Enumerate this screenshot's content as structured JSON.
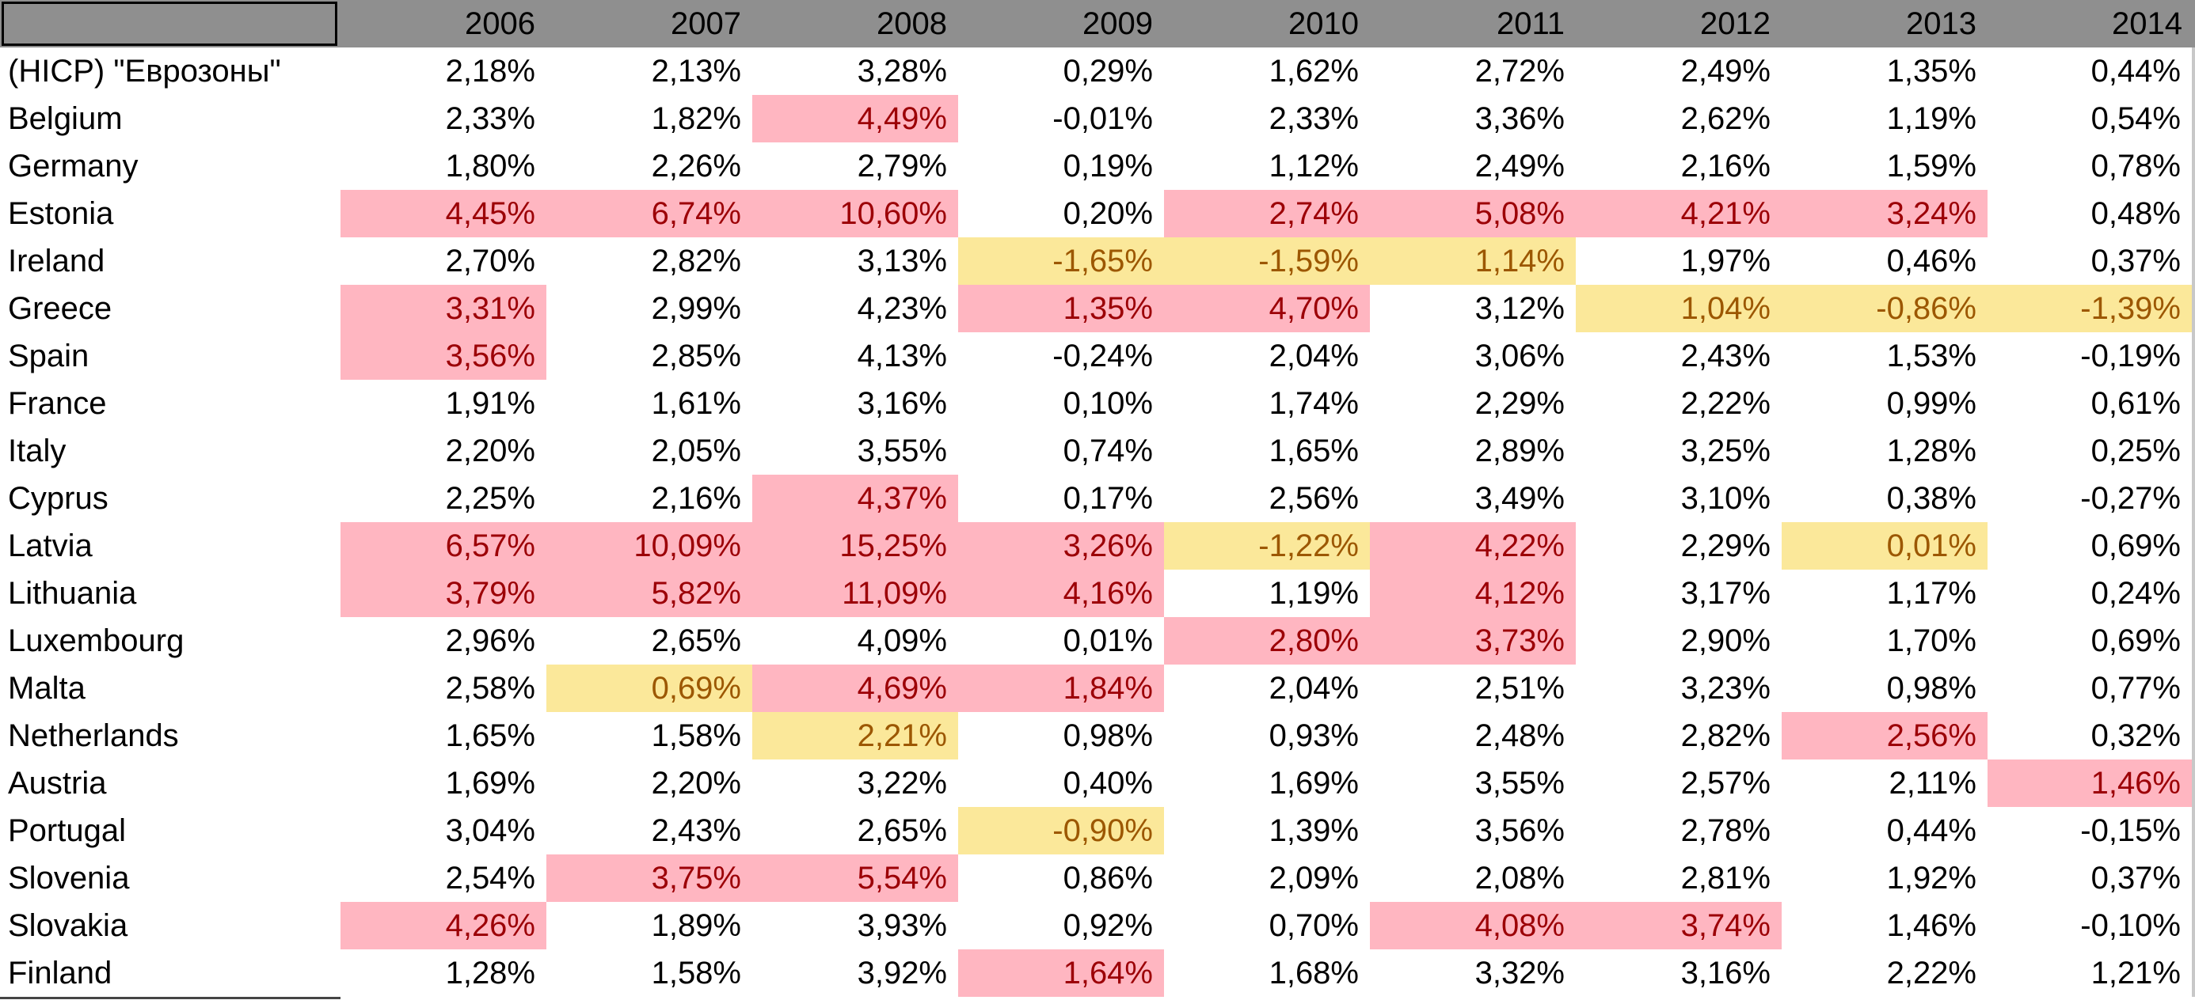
{
  "table": {
    "columns": [
      "",
      "2006",
      "2007",
      "2008",
      "2009",
      "2010",
      "2011",
      "2012",
      "2013",
      "2014"
    ],
    "rows": [
      {
        "name": "(HICP) \"Еврозоны\"",
        "values": [
          "2,18%",
          "2,13%",
          "3,28%",
          "0,29%",
          "1,62%",
          "2,72%",
          "2,49%",
          "1,35%",
          "0,44%"
        ],
        "flags": [
          "",
          "",
          "",
          "",
          "",
          "",
          "",
          "",
          ""
        ]
      },
      {
        "name": "Belgium",
        "values": [
          "2,33%",
          "1,82%",
          "4,49%",
          "-0,01%",
          "2,33%",
          "3,36%",
          "2,62%",
          "1,19%",
          "0,54%"
        ],
        "flags": [
          "",
          "",
          "high",
          "",
          "",
          "",
          "",
          "",
          ""
        ]
      },
      {
        "name": "Germany",
        "values": [
          "1,80%",
          "2,26%",
          "2,79%",
          "0,19%",
          "1,12%",
          "2,49%",
          "2,16%",
          "1,59%",
          "0,78%"
        ],
        "flags": [
          "",
          "",
          "",
          "",
          "",
          "",
          "",
          "",
          ""
        ]
      },
      {
        "name": "Estonia",
        "values": [
          "4,45%",
          "6,74%",
          "10,60%",
          "0,20%",
          "2,74%",
          "5,08%",
          "4,21%",
          "3,24%",
          "0,48%"
        ],
        "flags": [
          "high",
          "high",
          "high",
          "",
          "high",
          "high",
          "high",
          "high",
          ""
        ]
      },
      {
        "name": "Ireland",
        "values": [
          "2,70%",
          "2,82%",
          "3,13%",
          "-1,65%",
          "-1,59%",
          "1,14%",
          "1,97%",
          "0,46%",
          "0,37%"
        ],
        "flags": [
          "",
          "",
          "",
          "low",
          "low",
          "low",
          "",
          "",
          ""
        ]
      },
      {
        "name": "Greece",
        "values": [
          "3,31%",
          "2,99%",
          "4,23%",
          "1,35%",
          "4,70%",
          "3,12%",
          "1,04%",
          "-0,86%",
          "-1,39%"
        ],
        "flags": [
          "high",
          "",
          "",
          "high",
          "high",
          "",
          "low",
          "low",
          "low"
        ]
      },
      {
        "name": "Spain",
        "values": [
          "3,56%",
          "2,85%",
          "4,13%",
          "-0,24%",
          "2,04%",
          "3,06%",
          "2,43%",
          "1,53%",
          "-0,19%"
        ],
        "flags": [
          "high",
          "",
          "",
          "",
          "",
          "",
          "",
          "",
          ""
        ]
      },
      {
        "name": "France",
        "values": [
          "1,91%",
          "1,61%",
          "3,16%",
          "0,10%",
          "1,74%",
          "2,29%",
          "2,22%",
          "0,99%",
          "0,61%"
        ],
        "flags": [
          "",
          "",
          "",
          "",
          "",
          "",
          "",
          "",
          ""
        ]
      },
      {
        "name": "Italy",
        "values": [
          "2,20%",
          "2,05%",
          "3,55%",
          "0,74%",
          "1,65%",
          "2,89%",
          "3,25%",
          "1,28%",
          "0,25%"
        ],
        "flags": [
          "",
          "",
          "",
          "",
          "",
          "",
          "",
          "",
          ""
        ]
      },
      {
        "name": "Cyprus",
        "values": [
          "2,25%",
          "2,16%",
          "4,37%",
          "0,17%",
          "2,56%",
          "3,49%",
          "3,10%",
          "0,38%",
          "-0,27%"
        ],
        "flags": [
          "",
          "",
          "high",
          "",
          "",
          "",
          "",
          "",
          ""
        ]
      },
      {
        "name": "Latvia",
        "values": [
          "6,57%",
          "10,09%",
          "15,25%",
          "3,26%",
          "-1,22%",
          "4,22%",
          "2,29%",
          "0,01%",
          "0,69%"
        ],
        "flags": [
          "high",
          "high",
          "high",
          "high",
          "low",
          "high",
          "",
          "low",
          ""
        ]
      },
      {
        "name": "Lithuania",
        "values": [
          "3,79%",
          "5,82%",
          "11,09%",
          "4,16%",
          "1,19%",
          "4,12%",
          "3,17%",
          "1,17%",
          "0,24%"
        ],
        "flags": [
          "high",
          "high",
          "high",
          "high",
          "",
          "high",
          "",
          "",
          ""
        ]
      },
      {
        "name": "Luxembourg",
        "values": [
          "2,96%",
          "2,65%",
          "4,09%",
          "0,01%",
          "2,80%",
          "3,73%",
          "2,90%",
          "1,70%",
          "0,69%"
        ],
        "flags": [
          "",
          "",
          "",
          "",
          "high",
          "high",
          "",
          "",
          ""
        ]
      },
      {
        "name": "Malta",
        "values": [
          "2,58%",
          "0,69%",
          "4,69%",
          "1,84%",
          "2,04%",
          "2,51%",
          "3,23%",
          "0,98%",
          "0,77%"
        ],
        "flags": [
          "",
          "low",
          "high",
          "high",
          "",
          "",
          "",
          "",
          ""
        ]
      },
      {
        "name": "Netherlands",
        "values": [
          "1,65%",
          "1,58%",
          "2,21%",
          "0,98%",
          "0,93%",
          "2,48%",
          "2,82%",
          "2,56%",
          "0,32%"
        ],
        "flags": [
          "",
          "",
          "low",
          "",
          "",
          "",
          "",
          "high",
          ""
        ]
      },
      {
        "name": "Austria",
        "values": [
          "1,69%",
          "2,20%",
          "3,22%",
          "0,40%",
          "1,69%",
          "3,55%",
          "2,57%",
          "2,11%",
          "1,46%"
        ],
        "flags": [
          "",
          "",
          "",
          "",
          "",
          "",
          "",
          "",
          "high"
        ]
      },
      {
        "name": "Portugal",
        "values": [
          "3,04%",
          "2,43%",
          "2,65%",
          "-0,90%",
          "1,39%",
          "3,56%",
          "2,78%",
          "0,44%",
          "-0,15%"
        ],
        "flags": [
          "",
          "",
          "",
          "low",
          "",
          "",
          "",
          "",
          ""
        ]
      },
      {
        "name": "Slovenia",
        "values": [
          "2,54%",
          "3,75%",
          "5,54%",
          "0,86%",
          "2,09%",
          "2,08%",
          "2,81%",
          "1,92%",
          "0,37%"
        ],
        "flags": [
          "",
          "high",
          "high",
          "",
          "",
          "",
          "",
          "",
          ""
        ]
      },
      {
        "name": "Slovakia",
        "values": [
          "4,26%",
          "1,89%",
          "3,93%",
          "0,92%",
          "0,70%",
          "4,08%",
          "3,74%",
          "1,46%",
          "-0,10%"
        ],
        "flags": [
          "high",
          "",
          "",
          "",
          "",
          "high",
          "high",
          "",
          ""
        ]
      },
      {
        "name": "Finland",
        "values": [
          "1,28%",
          "1,58%",
          "3,92%",
          "1,64%",
          "1,68%",
          "3,32%",
          "3,16%",
          "2,22%",
          "1,21%"
        ],
        "flags": [
          "",
          "",
          "",
          "high",
          "",
          "",
          "",
          "",
          ""
        ]
      }
    ]
  },
  "colors": {
    "header_bg": "#8f8f8f",
    "high_fill": "#ffb6c1",
    "high_text": "#9c0006",
    "low_fill": "#fbe89a",
    "low_text": "#9c5700"
  }
}
